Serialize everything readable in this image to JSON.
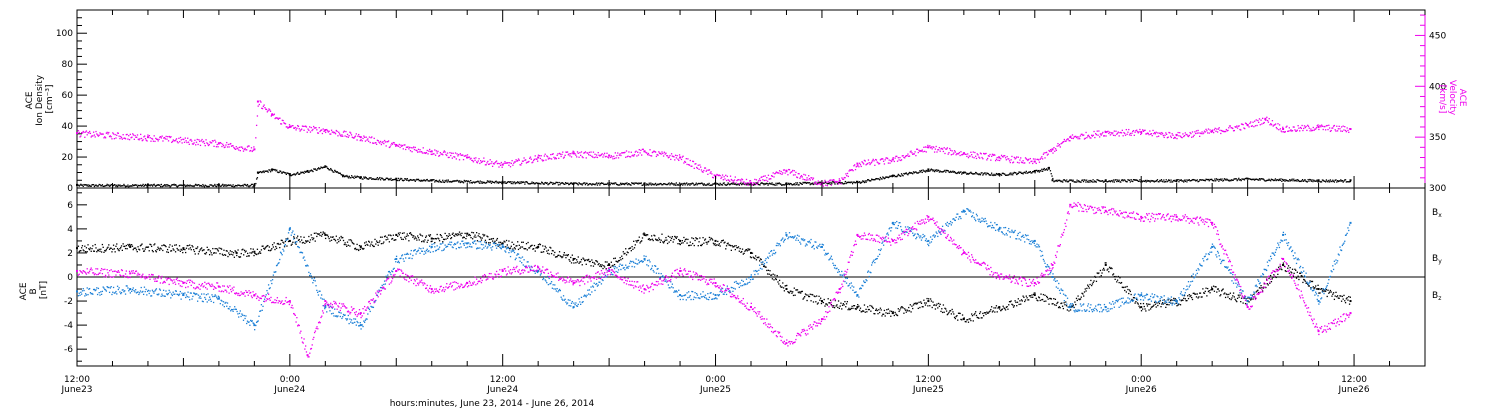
{
  "colors": {
    "axis": "#000000",
    "density": "#000000",
    "velocity": "#ee00ee",
    "bx": "#000000",
    "by": "#1a7fd6",
    "bz": "#ee00ee"
  },
  "x_axis": {
    "title": "hours:minutes, June 23, 2014 - June 26, 2014",
    "ticks": [
      {
        "hour": 0,
        "time": "12:00",
        "date": "June23"
      },
      {
        "hour": 12,
        "time": "0:00",
        "date": "June24"
      },
      {
        "hour": 24,
        "time": "12:00",
        "date": "June24"
      },
      {
        "hour": 36,
        "time": "0:00",
        "date": "June25"
      },
      {
        "hour": 48,
        "time": "12:00",
        "date": "June25"
      },
      {
        "hour": 60,
        "time": "0:00",
        "date": "June26"
      },
      {
        "hour": 72,
        "time": "12:00",
        "date": "June26"
      }
    ]
  },
  "top_panel": {
    "left_label": [
      "ACE",
      "Ion Density",
      "[cm⁻³]"
    ],
    "right_label": [
      "ACE",
      "Velocity",
      "[km/s]"
    ],
    "left_ticks": [
      "0",
      "20",
      "40",
      "60",
      "80",
      "100"
    ],
    "right_ticks": [
      "300",
      "350",
      "400",
      "450"
    ]
  },
  "bottom_panel": {
    "left_label": [
      "ACE",
      "B",
      "[nT]"
    ],
    "left_ticks": [
      "-6",
      "-4",
      "-2",
      "0",
      "2",
      "4",
      "6"
    ],
    "legend": [
      {
        "key": "bx",
        "base": "B",
        "sub": "x"
      },
      {
        "key": "by",
        "base": "B",
        "sub": "y"
      },
      {
        "key": "bz",
        "base": "B",
        "sub": "z"
      }
    ]
  },
  "chart_data": [
    {
      "type": "scatter",
      "xlim": [
        0,
        76
      ],
      "ylim": [
        0,
        115
      ],
      "y2lim": [
        300,
        475
      ],
      "series": [
        {
          "key": "density",
          "axis": "left",
          "x": [
            0,
            4,
            8,
            10,
            10.2,
            11,
            12,
            13,
            14,
            15,
            16,
            18,
            20,
            24,
            28,
            32,
            36,
            40,
            44,
            46,
            48,
            50,
            52,
            54,
            54.8,
            55,
            58,
            62,
            66,
            70,
            71.8
          ],
          "y": [
            2,
            2,
            2,
            2,
            10,
            12,
            9,
            11,
            14,
            8,
            7,
            6,
            5,
            4,
            3,
            3,
            3,
            3,
            4,
            8,
            12,
            10,
            9,
            11,
            13,
            5,
            5,
            5,
            6,
            5,
            5
          ]
        },
        {
          "key": "velocity",
          "axis": "right",
          "x": [
            0,
            4,
            8,
            10,
            10.2,
            11,
            12,
            14,
            16,
            18,
            20,
            22,
            24,
            26,
            28,
            30,
            32,
            34,
            36,
            38,
            40,
            42,
            43,
            44,
            46,
            48,
            50,
            52,
            54,
            55,
            56,
            58,
            60,
            62,
            64,
            66,
            67,
            68,
            70,
            71.8
          ],
          "y": [
            354,
            350,
            344,
            338,
            385,
            372,
            360,
            357,
            350,
            342,
            336,
            330,
            323,
            330,
            334,
            332,
            336,
            330,
            312,
            305,
            317,
            305,
            307,
            324,
            328,
            340,
            334,
            330,
            326,
            338,
            350,
            355,
            355,
            352,
            356,
            362,
            368,
            358,
            360,
            358
          ]
        }
      ]
    },
    {
      "type": "scatter",
      "xlim": [
        0,
        76
      ],
      "ylim": [
        -7.4,
        7.4
      ],
      "series": [
        {
          "key": "bx",
          "x": [
            0,
            3,
            6,
            9,
            10,
            12,
            14,
            16,
            18,
            20,
            22,
            24,
            26,
            28,
            30,
            32,
            34,
            36,
            38,
            40,
            42,
            44,
            46,
            48,
            50,
            52,
            54,
            56,
            58,
            60,
            62,
            64,
            66,
            68,
            70,
            71.8
          ],
          "y": [
            2.4,
            2.5,
            2.4,
            2.0,
            2.1,
            3.0,
            3.5,
            2.5,
            3.5,
            3.2,
            3.6,
            2.8,
            2.5,
            1.5,
            1.0,
            3.5,
            3.0,
            3.0,
            2.0,
            -1.0,
            -2.0,
            -2.5,
            -3.0,
            -2.0,
            -3.5,
            -2.5,
            -1.5,
            -2.5,
            1.0,
            -2.5,
            -2.0,
            -1.0,
            -2.0,
            1.0,
            -1.0,
            -2.0
          ]
        },
        {
          "key": "by",
          "x": [
            0,
            3,
            6,
            8,
            10,
            12,
            14,
            16,
            18,
            20,
            22,
            24,
            26,
            28,
            30,
            32,
            34,
            36,
            38,
            40,
            42,
            44,
            46,
            48,
            50,
            52,
            54,
            55,
            56,
            58,
            60,
            62,
            64,
            66,
            68,
            70,
            71.8
          ],
          "y": [
            -1.2,
            -1.0,
            -1.5,
            -1.8,
            -4.0,
            4.0,
            -2.5,
            -4.0,
            1.5,
            2.5,
            2.8,
            2.5,
            0.5,
            -2.5,
            0.5,
            1.5,
            -1.5,
            -1.5,
            0.0,
            3.5,
            2.5,
            -1.5,
            4.5,
            3.0,
            5.5,
            4.0,
            3.0,
            0.0,
            -2.5,
            -2.5,
            -1.5,
            -2.0,
            2.5,
            -2.0,
            3.5,
            -2.0,
            4.5
          ]
        },
        {
          "key": "bz",
          "x": [
            0,
            3,
            6,
            8,
            10,
            12,
            13,
            14,
            16,
            18,
            20,
            22,
            24,
            26,
            28,
            30,
            32,
            34,
            36,
            38,
            40,
            42,
            43,
            44,
            46,
            48,
            50,
            52,
            54,
            55,
            56,
            58,
            60,
            62,
            64,
            66,
            68,
            70,
            71.8
          ],
          "y": [
            0.5,
            0.3,
            -0.5,
            -0.8,
            -1.5,
            -2.0,
            -6.5,
            -2.0,
            -3.0,
            0.5,
            -1.0,
            -0.5,
            0.5,
            0.8,
            -0.5,
            0.5,
            -1.0,
            0.5,
            -0.5,
            -2.5,
            -5.5,
            -3.5,
            -1.0,
            3.5,
            3.0,
            5.0,
            2.0,
            0.0,
            -0.5,
            1.0,
            6.0,
            5.5,
            5.0,
            5.0,
            4.5,
            -2.5,
            1.5,
            -4.5,
            -3.0
          ]
        }
      ]
    }
  ]
}
